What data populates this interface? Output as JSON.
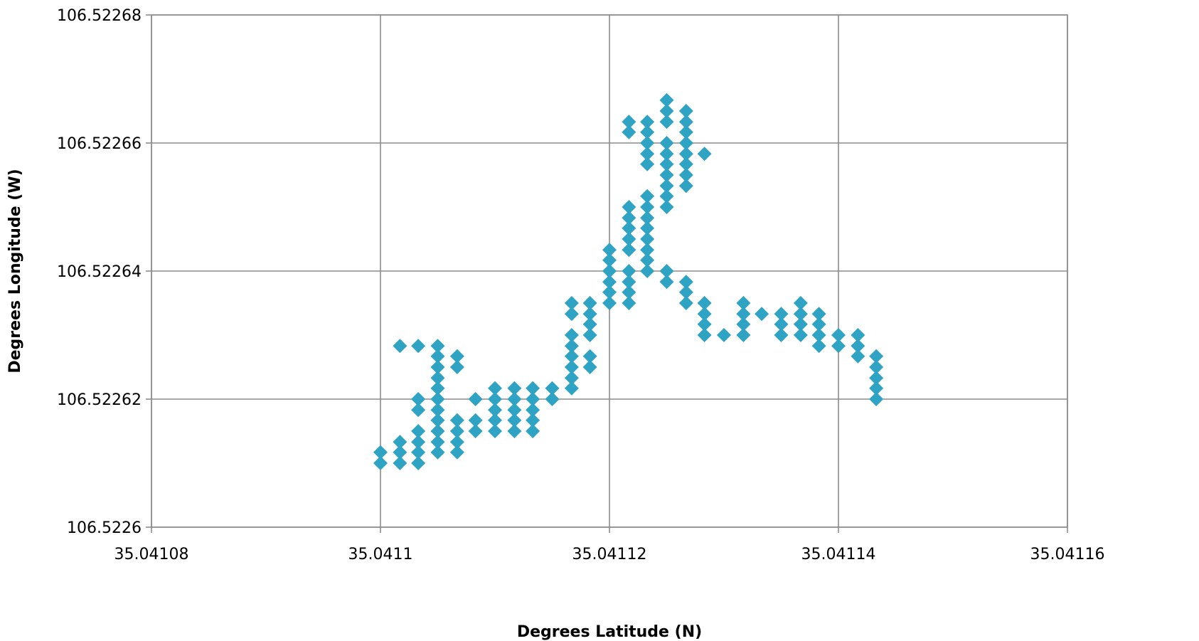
{
  "chart_data": {
    "type": "scatter",
    "marker": "diamond",
    "color": "#2fa3c3",
    "xlabel": "Degrees Latitude (N)",
    "ylabel": "Degrees Longitude (W)",
    "xlim": [
      35.04108,
      35.04116
    ],
    "ylim": [
      106.5226,
      106.52268
    ],
    "xticks": [
      35.04108,
      35.0411,
      35.04112,
      35.04114,
      35.04116
    ],
    "yticks": [
      106.5226,
      106.52262,
      106.52264,
      106.52266,
      106.52268
    ],
    "xtick_labels": [
      "35.04108",
      "35.0411",
      "35.04112",
      "35.04114",
      "35.04116"
    ],
    "ytick_labels": [
      "106.5226",
      "106.52262",
      "106.52264",
      "106.52266",
      "106.52268"
    ],
    "grid": true,
    "points": [
      [
        35.0411,
        106.52261
      ],
      [
        35.0411,
        106.5226117
      ],
      [
        35.0411017,
        106.52261
      ],
      [
        35.0411017,
        106.5226117
      ],
      [
        35.0411017,
        106.5226133
      ],
      [
        35.0411017,
        106.5226283
      ],
      [
        35.0411033,
        106.52261
      ],
      [
        35.0411033,
        106.5226117
      ],
      [
        35.0411033,
        106.5226133
      ],
      [
        35.0411033,
        106.522615
      ],
      [
        35.0411033,
        106.5226183
      ],
      [
        35.0411033,
        106.52262
      ],
      [
        35.0411033,
        106.5226283
      ],
      [
        35.041105,
        106.5226117
      ],
      [
        35.041105,
        106.5226133
      ],
      [
        35.041105,
        106.522615
      ],
      [
        35.041105,
        106.5226167
      ],
      [
        35.041105,
        106.5226183
      ],
      [
        35.041105,
        106.52262
      ],
      [
        35.041105,
        106.5226217
      ],
      [
        35.041105,
        106.5226233
      ],
      [
        35.041105,
        106.522625
      ],
      [
        35.041105,
        106.5226267
      ],
      [
        35.041105,
        106.5226283
      ],
      [
        35.0411067,
        106.5226117
      ],
      [
        35.0411067,
        106.5226133
      ],
      [
        35.0411067,
        106.522615
      ],
      [
        35.0411067,
        106.5226167
      ],
      [
        35.0411067,
        106.522625
      ],
      [
        35.0411067,
        106.5226267
      ],
      [
        35.0411083,
        106.522615
      ],
      [
        35.0411083,
        106.5226167
      ],
      [
        35.0411083,
        106.52262
      ],
      [
        35.04111,
        106.522615
      ],
      [
        35.04111,
        106.5226167
      ],
      [
        35.04111,
        106.5226183
      ],
      [
        35.04111,
        106.52262
      ],
      [
        35.04111,
        106.5226217
      ],
      [
        35.0411117,
        106.522615
      ],
      [
        35.0411117,
        106.5226167
      ],
      [
        35.0411117,
        106.5226183
      ],
      [
        35.0411117,
        106.52262
      ],
      [
        35.0411117,
        106.5226217
      ],
      [
        35.0411133,
        106.522615
      ],
      [
        35.0411133,
        106.5226167
      ],
      [
        35.0411133,
        106.5226183
      ],
      [
        35.0411133,
        106.52262
      ],
      [
        35.0411133,
        106.5226217
      ],
      [
        35.041115,
        106.52262
      ],
      [
        35.041115,
        106.5226217
      ],
      [
        35.0411167,
        106.5226217
      ],
      [
        35.0411167,
        106.5226233
      ],
      [
        35.0411167,
        106.522625
      ],
      [
        35.0411167,
        106.5226267
      ],
      [
        35.0411167,
        106.5226283
      ],
      [
        35.0411167,
        106.52263
      ],
      [
        35.0411167,
        106.5226333
      ],
      [
        35.0411167,
        106.522635
      ],
      [
        35.0411183,
        106.522625
      ],
      [
        35.0411183,
        106.5226267
      ],
      [
        35.0411183,
        106.52263
      ],
      [
        35.0411183,
        106.5226317
      ],
      [
        35.0411183,
        106.5226333
      ],
      [
        35.0411183,
        106.522635
      ],
      [
        35.04112,
        106.522635
      ],
      [
        35.04112,
        106.5226367
      ],
      [
        35.04112,
        106.5226383
      ],
      [
        35.04112,
        106.52264
      ],
      [
        35.04112,
        106.5226417
      ],
      [
        35.04112,
        106.5226433
      ],
      [
        35.0411217,
        106.522635
      ],
      [
        35.0411217,
        106.5226367
      ],
      [
        35.0411217,
        106.5226383
      ],
      [
        35.0411217,
        106.52264
      ],
      [
        35.0411217,
        106.5226433
      ],
      [
        35.0411217,
        106.522645
      ],
      [
        35.0411217,
        106.5226467
      ],
      [
        35.0411217,
        106.5226483
      ],
      [
        35.0411217,
        106.52265
      ],
      [
        35.0411217,
        106.5226617
      ],
      [
        35.0411217,
        106.5226633
      ],
      [
        35.0411233,
        106.52264
      ],
      [
        35.0411233,
        106.5226417
      ],
      [
        35.0411233,
        106.5226433
      ],
      [
        35.0411233,
        106.522645
      ],
      [
        35.0411233,
        106.5226467
      ],
      [
        35.0411233,
        106.5226483
      ],
      [
        35.0411233,
        106.52265
      ],
      [
        35.0411233,
        106.5226517
      ],
      [
        35.0411233,
        106.5226567
      ],
      [
        35.0411233,
        106.5226583
      ],
      [
        35.0411233,
        106.52266
      ],
      [
        35.0411233,
        106.5226617
      ],
      [
        35.0411233,
        106.5226633
      ],
      [
        35.041125,
        106.5226383
      ],
      [
        35.041125,
        106.52264
      ],
      [
        35.041125,
        106.52265
      ],
      [
        35.041125,
        106.5226517
      ],
      [
        35.041125,
        106.5226533
      ],
      [
        35.041125,
        106.522655
      ],
      [
        35.041125,
        106.5226567
      ],
      [
        35.041125,
        106.5226583
      ],
      [
        35.041125,
        106.52266
      ],
      [
        35.041125,
        106.5226633
      ],
      [
        35.041125,
        106.522665
      ],
      [
        35.041125,
        106.5226667
      ],
      [
        35.0411267,
        106.522635
      ],
      [
        35.0411267,
        106.5226367
      ],
      [
        35.0411267,
        106.5226383
      ],
      [
        35.0411267,
        106.5226533
      ],
      [
        35.0411267,
        106.522655
      ],
      [
        35.0411267,
        106.5226567
      ],
      [
        35.0411267,
        106.5226583
      ],
      [
        35.0411267,
        106.52266
      ],
      [
        35.0411267,
        106.5226617
      ],
      [
        35.0411267,
        106.5226633
      ],
      [
        35.0411267,
        106.522665
      ],
      [
        35.0411283,
        106.52263
      ],
      [
        35.0411283,
        106.5226317
      ],
      [
        35.0411283,
        106.5226333
      ],
      [
        35.0411283,
        106.522635
      ],
      [
        35.0411283,
        106.5226583
      ],
      [
        35.04113,
        106.52263
      ],
      [
        35.0411317,
        106.52263
      ],
      [
        35.0411317,
        106.5226317
      ],
      [
        35.0411317,
        106.5226333
      ],
      [
        35.0411317,
        106.522635
      ],
      [
        35.0411333,
        106.5226333
      ],
      [
        35.041135,
        106.52263
      ],
      [
        35.041135,
        106.5226317
      ],
      [
        35.041135,
        106.5226333
      ],
      [
        35.0411367,
        106.52263
      ],
      [
        35.0411367,
        106.5226317
      ],
      [
        35.0411367,
        106.5226333
      ],
      [
        35.0411367,
        106.522635
      ],
      [
        35.0411383,
        106.5226283
      ],
      [
        35.0411383,
        106.52263
      ],
      [
        35.0411383,
        106.5226317
      ],
      [
        35.0411383,
        106.5226333
      ],
      [
        35.04114,
        106.5226283
      ],
      [
        35.04114,
        106.52263
      ],
      [
        35.0411417,
        106.5226267
      ],
      [
        35.0411417,
        106.5226283
      ],
      [
        35.0411417,
        106.52263
      ],
      [
        35.0411433,
        106.52262
      ],
      [
        35.0411433,
        106.5226217
      ],
      [
        35.0411433,
        106.5226233
      ],
      [
        35.0411433,
        106.522625
      ],
      [
        35.0411433,
        106.5226267
      ]
    ]
  }
}
